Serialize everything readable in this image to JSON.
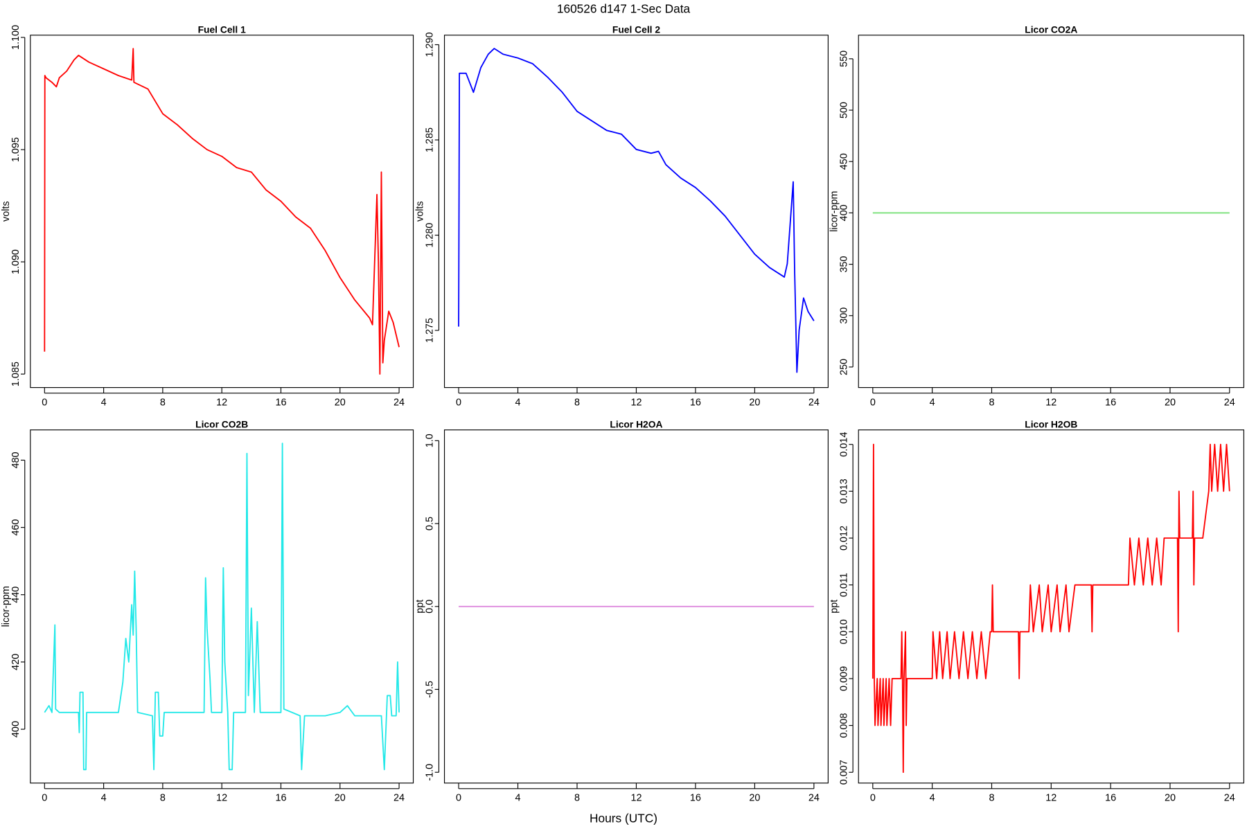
{
  "title": "160526   d147   1-Sec Data",
  "xlabel": "Hours (UTC)",
  "chart_data": [
    {
      "type": "line",
      "title": "Fuel Cell 1",
      "ylabel": "volts",
      "color": "#ff0000",
      "xlim": [
        -0.96,
        24.96
      ],
      "xticks": [
        0,
        4,
        8,
        12,
        16,
        20,
        24
      ],
      "ylim": [
        1.0844,
        1.1001
      ],
      "yticks": [
        1.085,
        {
          "value": 1.09,
          "label": "1.090"
        },
        1.095,
        {
          "value": 1.1,
          "label": "1.100"
        }
      ],
      "x": [
        0,
        0.02,
        0.1,
        0.5,
        0.8,
        1,
        1.5,
        2,
        2.3,
        3,
        4,
        5,
        5.9,
        6,
        6.05,
        7,
        8,
        9,
        10,
        11,
        12,
        13,
        14,
        15,
        16,
        17,
        18,
        19,
        20,
        21,
        22,
        22.2,
        22.5,
        22.6,
        22.7,
        22.8,
        22.9,
        23,
        23.3,
        23.6,
        24
      ],
      "values": [
        1.086,
        1.0983,
        1.0982,
        1.098,
        1.0978,
        1.0982,
        1.0985,
        1.099,
        1.0992,
        1.0989,
        1.0986,
        1.0983,
        1.0981,
        1.0995,
        1.098,
        1.0977,
        1.0966,
        1.0961,
        1.0955,
        1.095,
        1.0947,
        1.0942,
        1.094,
        1.0932,
        1.0927,
        1.092,
        1.0915,
        1.0905,
        1.0893,
        1.0883,
        1.0875,
        1.0872,
        1.093,
        1.09,
        1.085,
        1.094,
        1.0855,
        1.0865,
        1.0878,
        1.0873,
        1.0862
      ]
    },
    {
      "type": "line",
      "title": "Fuel Cell 2",
      "ylabel": "volts",
      "color": "#0000ff",
      "xlim": [
        -0.96,
        24.96
      ],
      "xticks": [
        0,
        4,
        8,
        12,
        16,
        20,
        24
      ],
      "ylim": [
        1.272,
        1.2905
      ],
      "yticks": [
        1.275,
        {
          "value": 1.28,
          "label": "1.280"
        },
        1.285,
        {
          "value": 1.29,
          "label": "1.290"
        }
      ],
      "x": [
        0,
        0.05,
        0.5,
        1,
        1.5,
        2,
        2.4,
        3,
        4,
        5,
        6,
        7,
        8,
        9,
        10,
        11,
        12,
        13,
        13.5,
        14,
        15,
        16,
        17,
        18,
        19,
        20,
        21,
        22,
        22.2,
        22.6,
        22.7,
        22.85,
        23,
        23.3,
        23.6,
        24
      ],
      "values": [
        1.2752,
        1.2885,
        1.2885,
        1.2875,
        1.2888,
        1.2895,
        1.2898,
        1.2895,
        1.2893,
        1.289,
        1.2883,
        1.2875,
        1.2865,
        1.286,
        1.2855,
        1.2853,
        1.2845,
        1.2843,
        1.2844,
        1.2837,
        1.283,
        1.2825,
        1.2818,
        1.281,
        1.28,
        1.279,
        1.2783,
        1.2778,
        1.2785,
        1.2828,
        1.278,
        1.2728,
        1.275,
        1.2767,
        1.276,
        1.2755
      ]
    },
    {
      "type": "line",
      "title": "Licor CO2A",
      "ylabel": "licor-ppm",
      "color": "#77e077",
      "xlim": [
        -0.96,
        24.96
      ],
      "xticks": [
        0,
        4,
        8,
        12,
        16,
        20,
        24
      ],
      "ylim": [
        230,
        573
      ],
      "yticks": [
        250,
        300,
        350,
        400,
        450,
        500,
        550
      ],
      "x": [
        0,
        24
      ],
      "values": [
        400,
        400
      ]
    },
    {
      "type": "line",
      "title": "Licor CO2B",
      "ylabel": "licor-ppm",
      "color": "#22e8e8",
      "xlim": [
        -0.96,
        24.96
      ],
      "xticks": [
        0,
        4,
        8,
        12,
        16,
        20,
        24
      ],
      "ylim": [
        384,
        489
      ],
      "yticks": [
        400,
        420,
        440,
        460,
        480
      ],
      "x": [
        0,
        0.3,
        0.5,
        0.7,
        0.75,
        1,
        2.3,
        2.35,
        2.4,
        2.6,
        2.65,
        2.8,
        2.85,
        5,
        5.3,
        5.5,
        5.7,
        5.9,
        6,
        6.1,
        6.2,
        6.3,
        7.3,
        7.4,
        7.5,
        7.7,
        7.8,
        8,
        8.1,
        10.8,
        10.9,
        11,
        11.2,
        11.3,
        12,
        12.1,
        12.2,
        12.4,
        12.5,
        12.7,
        12.8,
        13.6,
        13.7,
        13.8,
        14,
        14.2,
        14.4,
        14.6,
        16,
        16.1,
        16.2,
        17.3,
        17.4,
        17.6,
        19,
        20,
        20.5,
        21,
        22,
        22.8,
        22.9,
        23,
        23.2,
        23.4,
        23.5,
        23.8,
        23.9,
        24
      ],
      "values": [
        405,
        407,
        405,
        431,
        406,
        405,
        405,
        399,
        411,
        411,
        388,
        388,
        405,
        405,
        414,
        427,
        420,
        437,
        428,
        447,
        430,
        405,
        404,
        388,
        411,
        411,
        398,
        398,
        405,
        405,
        445,
        430,
        415,
        405,
        405,
        448,
        420,
        405,
        388,
        388,
        405,
        405,
        482,
        410,
        436,
        405,
        432,
        405,
        405,
        485,
        406,
        404,
        388,
        404,
        404,
        405,
        407,
        404,
        404,
        404,
        396,
        388,
        410,
        410,
        404,
        404,
        420,
        405
      ]
    },
    {
      "type": "line",
      "title": "Licor H2OA",
      "ylabel": "ppt",
      "color": "#dd88dd",
      "xlim": [
        -0.96,
        24.96
      ],
      "xticks": [
        0,
        4,
        8,
        12,
        16,
        20,
        24
      ],
      "ylim": [
        -1.065,
        1.065
      ],
      "yticks": [
        {
          "value": -1,
          "label": "-1.0"
        },
        -0.5,
        {
          "value": 0,
          "label": "0.0"
        },
        0.5,
        {
          "value": 1,
          "label": "1.0"
        }
      ],
      "x": [
        0,
        24
      ],
      "values": [
        0,
        0
      ]
    },
    {
      "type": "line",
      "title": "Licor H2OB",
      "ylabel": "ppt",
      "color": "#ff0000",
      "xlim": [
        -0.96,
        24.96
      ],
      "xticks": [
        0,
        4,
        8,
        12,
        16,
        20,
        24
      ],
      "ylim": [
        0.00677,
        0.01431
      ],
      "yticks": [
        0.007,
        0.008,
        0.009,
        {
          "value": 0.01,
          "label": "0.010"
        },
        0.011,
        0.012,
        0.013,
        0.014
      ],
      "x": [
        0,
        0.05,
        0.1,
        0.15,
        0.3,
        0.35,
        0.5,
        0.55,
        0.7,
        0.75,
        0.9,
        0.95,
        1.1,
        1.2,
        1.3,
        1.9,
        1.95,
        2.0,
        2.05,
        2.1,
        2.2,
        2.25,
        2.3,
        4.0,
        4.05,
        4.3,
        4.5,
        4.7,
        5.0,
        5.2,
        5.5,
        5.8,
        6.1,
        6.4,
        6.7,
        7.0,
        7.3,
        7.6,
        7.9,
        8.0,
        8.05,
        8.1,
        9.8,
        9.85,
        9.9,
        10.5,
        10.6,
        10.8,
        11.2,
        11.4,
        11.8,
        12.0,
        12.4,
        12.6,
        13.0,
        13.2,
        13.6,
        14.7,
        14.75,
        14.8,
        17.2,
        17.3,
        17.6,
        17.9,
        18.2,
        18.5,
        18.8,
        19.1,
        19.4,
        19.6,
        20.5,
        20.55,
        20.6,
        20.65,
        21.5,
        21.55,
        21.6,
        21.65,
        22.2,
        22.6,
        22.7,
        22.8,
        23.0,
        23.2,
        23.4,
        23.6,
        23.8,
        24
      ],
      "values": [
        0.009,
        0.014,
        0.009,
        0.008,
        0.009,
        0.008,
        0.009,
        0.008,
        0.009,
        0.008,
        0.009,
        0.008,
        0.009,
        0.008,
        0.009,
        0.009,
        0.01,
        0.009,
        0.007,
        0.009,
        0.01,
        0.008,
        0.009,
        0.009,
        0.01,
        0.009,
        0.01,
        0.009,
        0.01,
        0.009,
        0.01,
        0.009,
        0.01,
        0.009,
        0.01,
        0.009,
        0.01,
        0.009,
        0.01,
        0.01,
        0.011,
        0.01,
        0.01,
        0.009,
        0.01,
        0.01,
        0.011,
        0.01,
        0.011,
        0.01,
        0.011,
        0.01,
        0.011,
        0.01,
        0.011,
        0.01,
        0.011,
        0.011,
        0.01,
        0.011,
        0.011,
        0.012,
        0.011,
        0.012,
        0.011,
        0.012,
        0.011,
        0.012,
        0.011,
        0.012,
        0.012,
        0.01,
        0.013,
        0.012,
        0.012,
        0.013,
        0.011,
        0.012,
        0.012,
        0.013,
        0.014,
        0.013,
        0.014,
        0.013,
        0.014,
        0.013,
        0.014,
        0.013
      ]
    }
  ]
}
